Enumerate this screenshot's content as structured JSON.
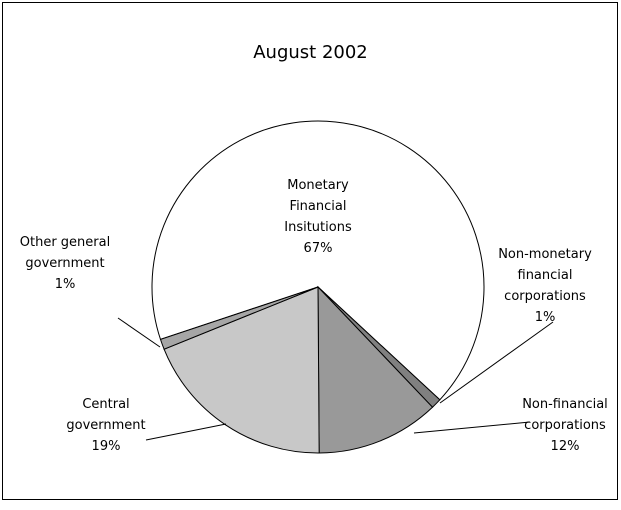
{
  "chart_data": {
    "type": "pie",
    "title": "August 2002",
    "categories": [
      "Monetary Financial Insitutions",
      "Non-monetary financial corporations",
      "Non-financial corporations",
      "Central government",
      "Other general government"
    ],
    "values": [
      67,
      1,
      12,
      19,
      1
    ],
    "value_labels": [
      "67%",
      "1%",
      "12%",
      "19%",
      "1%"
    ],
    "colors": [
      "#ffffff",
      "#808080",
      "#999999",
      "#c8c8c8",
      "#a6a6a6"
    ]
  }
}
